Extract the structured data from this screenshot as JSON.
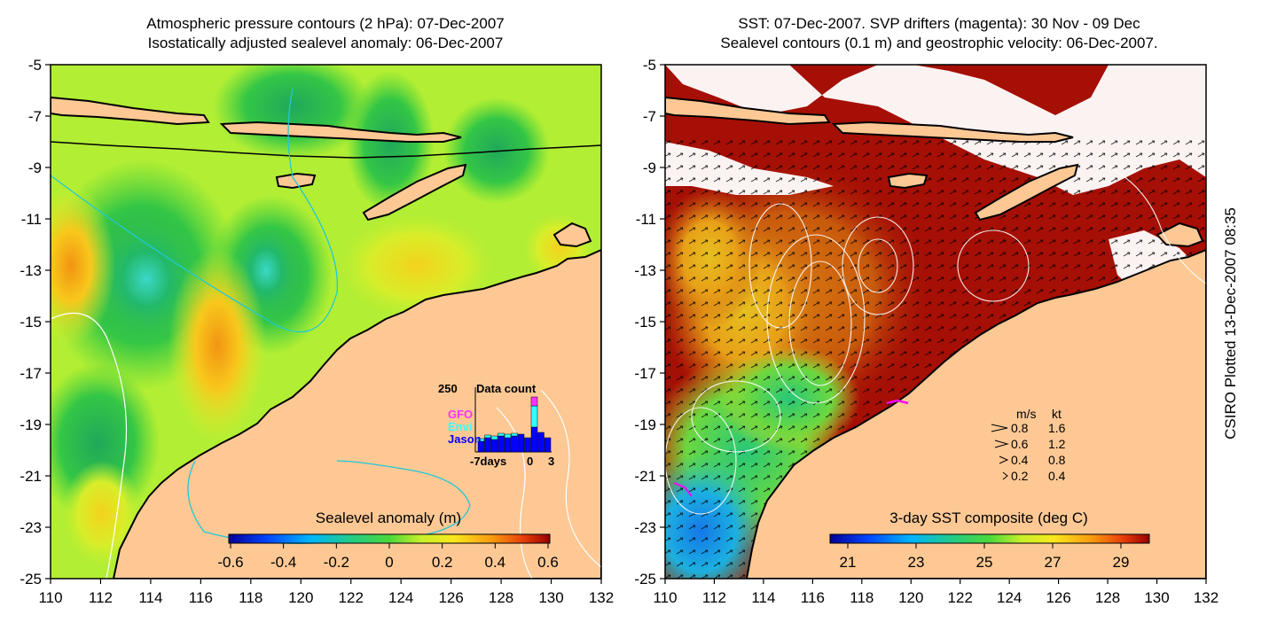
{
  "left_map": {
    "title_line1": "Atmospheric pressure contours (2 hPa): 07-Dec-2007",
    "title_line2": "Isostatically adjusted sealevel anomaly: 06-Dec-2007",
    "y_ticks": [
      "-5",
      "-7",
      "-9",
      "-11",
      "-13",
      "-15",
      "-17",
      "-19",
      "-21",
      "-23",
      "-25"
    ],
    "x_ticks": [
      "110",
      "112",
      "114",
      "116",
      "118",
      "120",
      "122",
      "124",
      "126",
      "128",
      "130",
      "132"
    ],
    "colorbar_label": "Sealevel anomaly (m)",
    "colorbar_ticks": [
      "-0.6",
      "-0.4",
      "-0.2",
      "0",
      "0.2",
      "0.4",
      "0.6"
    ],
    "inset": {
      "title": "Data count",
      "max_label": "250",
      "legend": [
        {
          "name": "GFO",
          "color": "#ff33ff"
        },
        {
          "name": "Envi",
          "color": "#33ffff"
        },
        {
          "name": "Jason",
          "color": "#0000ff"
        }
      ],
      "x_labels": [
        "-7days",
        "0",
        "3"
      ]
    }
  },
  "right_map": {
    "title_line1": "SST: 07-Dec-2007. SVP drifters (magenta): 30 Nov - 09 Dec",
    "title_line2": "Sealevel contours (0.1 m) and geostrophic velocity: 06-Dec-2007.",
    "y_ticks": [
      "-5",
      "-7",
      "-9",
      "-11",
      "-13",
      "-15",
      "-17",
      "-19",
      "-21",
      "-23",
      "-25"
    ],
    "x_ticks": [
      "110",
      "112",
      "114",
      "116",
      "118",
      "120",
      "122",
      "124",
      "126",
      "128",
      "130",
      "132"
    ],
    "colorbar_label": "3-day SST composite (deg C)",
    "colorbar_ticks": [
      "21",
      "23",
      "25",
      "27",
      "29"
    ],
    "velocity_legend": {
      "header_ms": "m/s",
      "header_kt": "kt",
      "rows": [
        {
          "ms": "0.8",
          "kt": "1.6"
        },
        {
          "ms": "0.6",
          "kt": "1.2"
        },
        {
          "ms": "0.4",
          "kt": "0.8"
        },
        {
          "ms": "0.2",
          "kt": "0.4"
        }
      ]
    }
  },
  "side_label": "CSIRO Plotted 13-Dec-2007 08:35",
  "colors": {
    "land": "#fdc894",
    "sst_warm": "#a50f05",
    "sla_base": "#b5f03a",
    "drifter": "#ff00ff",
    "altimeter_track": "#20c8d8"
  }
}
